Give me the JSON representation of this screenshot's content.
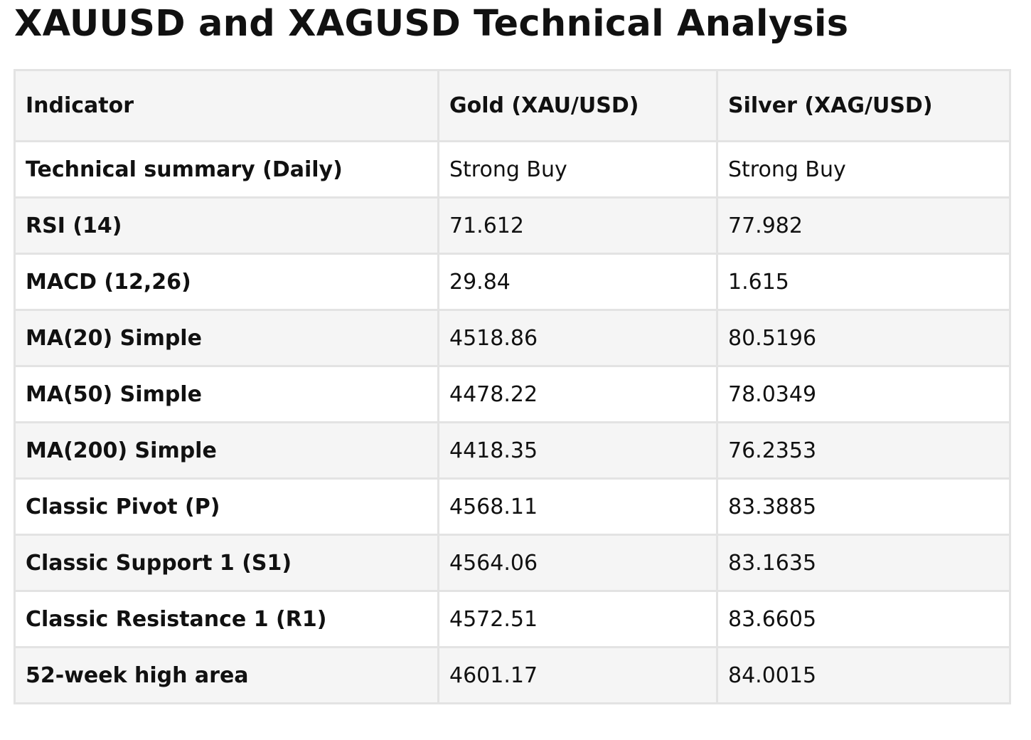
{
  "title": "XAUUSD and XAGUSD Technical Analysis",
  "table": {
    "headers": [
      "Indicator",
      "Gold (XAU/USD)",
      "Silver (XAG/USD)"
    ],
    "rows": [
      [
        "Technical summary (Daily)",
        "Strong Buy",
        "Strong Buy"
      ],
      [
        "RSI (14)",
        "71.612",
        "77.982"
      ],
      [
        "MACD (12,26)",
        "29.84",
        "1.615"
      ],
      [
        "MA(20) Simple",
        "4518.86",
        "80.5196"
      ],
      [
        "MA(50) Simple",
        "4478.22",
        "78.0349"
      ],
      [
        "MA(200) Simple",
        "4418.35",
        "76.2353"
      ],
      [
        "Classic Pivot (P)",
        "4568.11",
        "83.3885"
      ],
      [
        "Classic Support 1 (S1)",
        "4564.06",
        "83.1635"
      ],
      [
        "Classic Resistance 1 (R1)",
        "4572.51",
        "83.6605"
      ],
      [
        "52-week high area",
        "4601.17",
        "84.0015"
      ]
    ]
  }
}
